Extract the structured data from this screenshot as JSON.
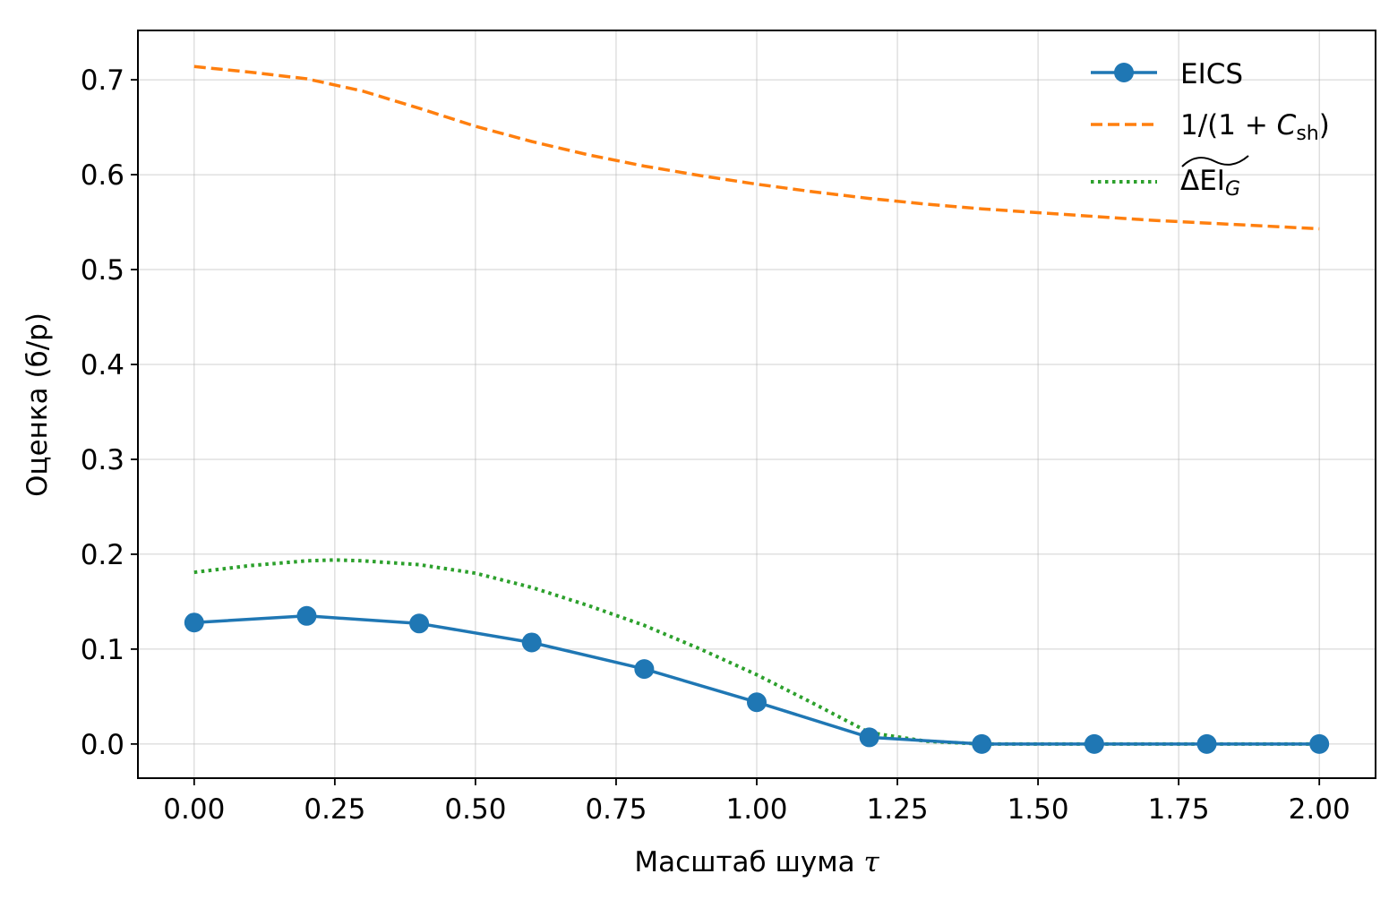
{
  "chart_data": {
    "type": "line",
    "xlabel_text": "Масштаб шума ",
    "xlabel_symbol": "τ",
    "ylabel": "Оценка (б/р)",
    "xlim": [
      -0.1,
      2.1
    ],
    "ylim": [
      -0.036,
      0.752
    ],
    "xticks": [
      0.0,
      0.25,
      0.5,
      0.75,
      1.0,
      1.25,
      1.5,
      1.75,
      2.0
    ],
    "xtick_labels": [
      "0.00",
      "0.25",
      "0.50",
      "0.75",
      "1.00",
      "1.25",
      "1.50",
      "1.75",
      "2.00"
    ],
    "yticks": [
      0.0,
      0.1,
      0.2,
      0.3,
      0.4,
      0.5,
      0.6,
      0.7
    ],
    "ytick_labels": [
      "0.0",
      "0.1",
      "0.2",
      "0.3",
      "0.4",
      "0.5",
      "0.6",
      "0.7"
    ],
    "grid": true,
    "legend_position": "top-right",
    "series": [
      {
        "name": "EICS",
        "style": "solid-markers",
        "color": "#1f77b4",
        "x": [
          0.0,
          0.2,
          0.4,
          0.6,
          0.8,
          1.0,
          1.2,
          1.4,
          1.6,
          1.8,
          2.0
        ],
        "y": [
          0.128,
          0.135,
          0.127,
          0.107,
          0.079,
          0.044,
          0.007,
          0.0,
          0.0,
          0.0,
          0.0
        ]
      },
      {
        "name": "1/(1 + C_sh)",
        "style": "dashed",
        "color": "#ff7f0e",
        "x": [
          0.0,
          0.1,
          0.2,
          0.3,
          0.4,
          0.5,
          0.6,
          0.7,
          0.8,
          0.9,
          1.0,
          1.1,
          1.2,
          1.3,
          1.4,
          1.5,
          1.6,
          1.7,
          1.8,
          1.9,
          2.0
        ],
        "y": [
          0.714,
          0.708,
          0.701,
          0.688,
          0.67,
          0.651,
          0.635,
          0.621,
          0.609,
          0.599,
          0.59,
          0.582,
          0.575,
          0.569,
          0.564,
          0.56,
          0.556,
          0.552,
          0.549,
          0.546,
          0.543
        ]
      },
      {
        "name": "ΔEI_G (tilde)",
        "style": "dotted",
        "color": "#2ca02c",
        "x": [
          0.0,
          0.1,
          0.2,
          0.25,
          0.3,
          0.4,
          0.5,
          0.6,
          0.7,
          0.8,
          0.9,
          1.0,
          1.1,
          1.2,
          1.3,
          1.4,
          1.5,
          1.6,
          1.7,
          1.8,
          1.9,
          2.0
        ],
        "y": [
          0.181,
          0.188,
          0.193,
          0.194,
          0.193,
          0.189,
          0.18,
          0.165,
          0.146,
          0.125,
          0.1,
          0.073,
          0.043,
          0.012,
          0.003,
          0.0,
          0.0,
          0.0,
          0.0,
          0.0,
          0.0,
          0.0
        ]
      }
    ],
    "legend": {
      "eics": "EICS",
      "csh_prefix": "1/(1 + ",
      "csh_var": "C",
      "csh_sub": "sh",
      "csh_suffix": ")",
      "dei_main": "ΔEI",
      "dei_sub": "G"
    }
  }
}
